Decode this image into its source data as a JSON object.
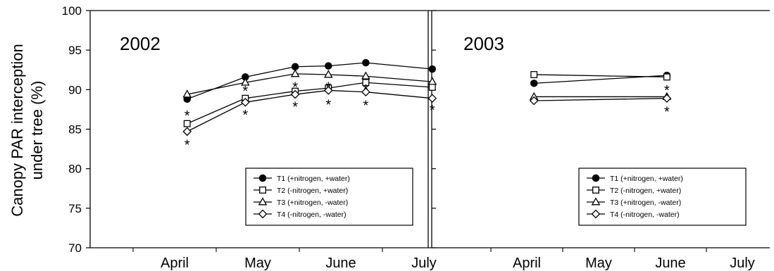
{
  "chart_data": {
    "type": "line",
    "ylabel": "Canopy PAR interception under tree (%)",
    "ylabel_lines": [
      "Canopy PAR interception",
      "under tree (%)"
    ],
    "ylim": [
      70,
      100
    ],
    "yticks": [
      70,
      75,
      80,
      85,
      90,
      95,
      100
    ],
    "legend": [
      {
        "key": "T1",
        "label": "T1 (+nitrogen, +water)",
        "marker": "filled-circle"
      },
      {
        "key": "T2",
        "label": "T2 (-nitrogen, +water)",
        "marker": "open-square"
      },
      {
        "key": "T3",
        "label": "T3 (+nitrogen, -water)",
        "marker": "open-triangle"
      },
      {
        "key": "T4",
        "label": "T4 (-nitrogen, -water)",
        "marker": "open-diamond"
      }
    ],
    "legend_position": "lower-right",
    "panels": [
      {
        "title": "2002",
        "months": [
          "April",
          "May",
          "June",
          "July"
        ],
        "series": [
          {
            "key": "T1",
            "points": [
              [
                0.15,
                88.8
              ],
              [
                0.85,
                91.6
              ],
              [
                1.45,
                92.9
              ],
              [
                1.85,
                93.0
              ],
              [
                2.3,
                93.4
              ],
              [
                3.1,
                92.6
              ]
            ]
          },
          {
            "key": "T2",
            "points": [
              [
                0.15,
                85.7
              ],
              [
                0.85,
                88.9
              ],
              [
                1.45,
                89.8
              ],
              [
                1.85,
                90.2
              ],
              [
                2.3,
                90.9
              ],
              [
                3.1,
                90.3
              ]
            ]
          },
          {
            "key": "T3",
            "points": [
              [
                0.15,
                89.4
              ],
              [
                0.85,
                90.9
              ],
              [
                1.45,
                92.0
              ],
              [
                1.85,
                91.9
              ],
              [
                2.3,
                91.7
              ],
              [
                3.1,
                91.0
              ]
            ]
          },
          {
            "key": "T4",
            "points": [
              [
                0.15,
                84.7
              ],
              [
                0.85,
                88.4
              ],
              [
                1.45,
                89.4
              ],
              [
                1.85,
                89.9
              ],
              [
                2.3,
                89.7
              ],
              [
                3.1,
                88.9
              ]
            ]
          }
        ],
        "annotations": [
          {
            "text": "*",
            "x": 0.15,
            "y": 87.0
          },
          {
            "text": "*",
            "x": 0.15,
            "y": 83.3
          },
          {
            "text": "*",
            "x": 0.85,
            "y": 90.1
          },
          {
            "text": "*",
            "x": 0.85,
            "y": 87.1
          },
          {
            "text": "*",
            "x": 1.45,
            "y": 90.6
          },
          {
            "text": "*",
            "x": 1.45,
            "y": 88.1
          },
          {
            "text": "*",
            "x": 1.85,
            "y": 90.6
          },
          {
            "text": "*",
            "x": 1.85,
            "y": 88.4
          },
          {
            "text": "*",
            "x": 2.3,
            "y": 90.3
          },
          {
            "text": "*",
            "x": 2.3,
            "y": 88.3
          },
          {
            "text": "*",
            "x": 3.1,
            "y": 87.7
          }
        ]
      },
      {
        "title": "2003",
        "months": [
          "April",
          "May",
          "June",
          "July"
        ],
        "series": [
          {
            "key": "T1",
            "points": [
              [
                0.1,
                90.8
              ],
              [
                1.95,
                91.8
              ]
            ]
          },
          {
            "key": "T2",
            "points": [
              [
                0.1,
                91.9
              ],
              [
                1.95,
                91.6
              ]
            ]
          },
          {
            "key": "T3",
            "points": [
              [
                0.1,
                89.1
              ],
              [
                1.95,
                89.1
              ]
            ]
          },
          {
            "key": "T4",
            "points": [
              [
                0.1,
                88.6
              ],
              [
                1.95,
                88.9
              ]
            ]
          }
        ],
        "annotations": [
          {
            "text": "*",
            "x": 1.95,
            "y": 90.2
          },
          {
            "text": "*",
            "x": 1.95,
            "y": 87.5
          }
        ]
      }
    ]
  }
}
